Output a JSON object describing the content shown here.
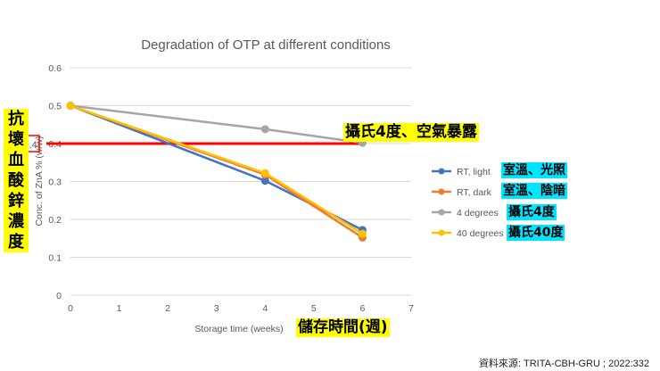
{
  "chart_data": {
    "type": "line",
    "title": "Degradation of OTP at different conditions",
    "xlabel": "Storage time (weeks)",
    "ylabel": "Conc. of ZnA % (w/w)",
    "xlim": [
      0,
      7
    ],
    "ylim": [
      0,
      0.6
    ],
    "xticks": [
      "0",
      "1",
      "2",
      "3",
      "4",
      "5",
      "6",
      "7"
    ],
    "yticks": [
      "0",
      "0.1",
      "0.2",
      "0.3",
      "0.4",
      "0.5",
      "0.6"
    ],
    "grid": "horizontal",
    "legend_position": "right",
    "series": [
      {
        "name": "RT, light",
        "color": "#4472c4",
        "x": [
          0,
          4,
          6
        ],
        "values": [
          0.5,
          0.302,
          0.172
        ]
      },
      {
        "name": "RT, dark",
        "color": "#ed7d31",
        "x": [
          0,
          4,
          6
        ],
        "values": [
          0.5,
          0.318,
          0.152
        ]
      },
      {
        "name": "4 degrees",
        "color": "#a5a5a5",
        "x": [
          0,
          4,
          6
        ],
        "values": [
          0.5,
          0.438,
          0.402
        ]
      },
      {
        "name": "40 degrees",
        "color": "#ffc000",
        "x": [
          0,
          4,
          6
        ],
        "values": [
          0.5,
          0.322,
          0.162
        ]
      }
    ],
    "reference_line": {
      "value": 0.4,
      "color": "#ff0000",
      "label": "0.4"
    }
  },
  "annotations": {
    "y_axis_chinese": [
      "抗",
      "壞",
      "血",
      "酸",
      "鋅",
      "濃",
      "度"
    ],
    "x_axis_chinese": "儲存時間(週)",
    "top_callout": "攝氏4度、空氣暴露",
    "legend_labels": [
      "室溫、光照",
      "室溫、陰暗",
      "攝氏4度",
      "攝氏40度"
    ]
  },
  "source": "資料來源: TRITA-CBH-GRU ; 2022:332"
}
